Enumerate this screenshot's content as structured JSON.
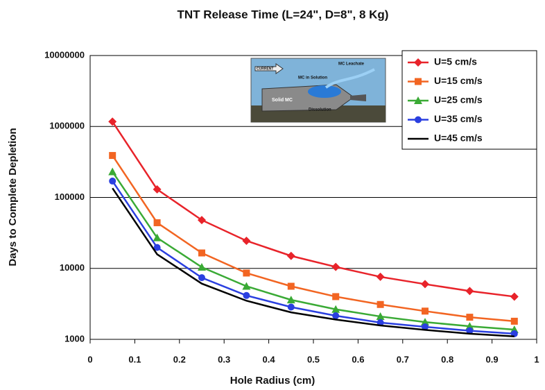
{
  "chart_data": {
    "type": "line",
    "title": "TNT Release Time (L=24\", D=8\", 8 Kg)",
    "x_label": "Hole Radius (cm)",
    "y_label": "Days to Complete Depletion",
    "x": [
      0.05,
      0.15,
      0.25,
      0.35,
      0.45,
      0.55,
      0.65,
      0.75,
      0.85,
      0.95
    ],
    "series": [
      {
        "name": "U=5 cm/s",
        "color": "#e8232a",
        "marker": "diamond",
        "values": [
          1170000,
          130000,
          48000,
          24500,
          15000,
          10500,
          7600,
          6000,
          4800,
          4000
        ]
      },
      {
        "name": "U=15 cm/s",
        "color": "#f26522",
        "marker": "square",
        "values": [
          390000,
          44000,
          16500,
          8600,
          5600,
          4000,
          3100,
          2500,
          2050,
          1800
        ]
      },
      {
        "name": "U=25 cm/s",
        "color": "#3aaa35",
        "marker": "triangle",
        "values": [
          230000,
          27000,
          10400,
          5600,
          3600,
          2650,
          2100,
          1750,
          1530,
          1370
        ]
      },
      {
        "name": "U=35 cm/s",
        "color": "#2a3fe0",
        "marker": "circle",
        "values": [
          170000,
          19700,
          7400,
          4150,
          2850,
          2150,
          1720,
          1500,
          1320,
          1200
        ]
      },
      {
        "name": "U=45 cm/s",
        "color": "#000000",
        "marker": "none",
        "values": [
          135000,
          15800,
          6100,
          3500,
          2400,
          1900,
          1570,
          1360,
          1200,
          1100
        ]
      }
    ],
    "xlim": [
      0,
      1
    ],
    "xticks": [
      0,
      0.1,
      0.2,
      0.3,
      0.4,
      0.5,
      0.6,
      0.7,
      0.8,
      0.9,
      1
    ],
    "ylim": [
      1000,
      10000000
    ],
    "yticks": [
      1000,
      10000,
      100000,
      1000000,
      10000000
    ],
    "yscale": "log",
    "grid": true,
    "legend": "top-right",
    "inset_labels": [
      "CURRENT",
      "MC in Solution",
      "MC Leachate",
      "Solid MC",
      "Dissolution"
    ]
  }
}
